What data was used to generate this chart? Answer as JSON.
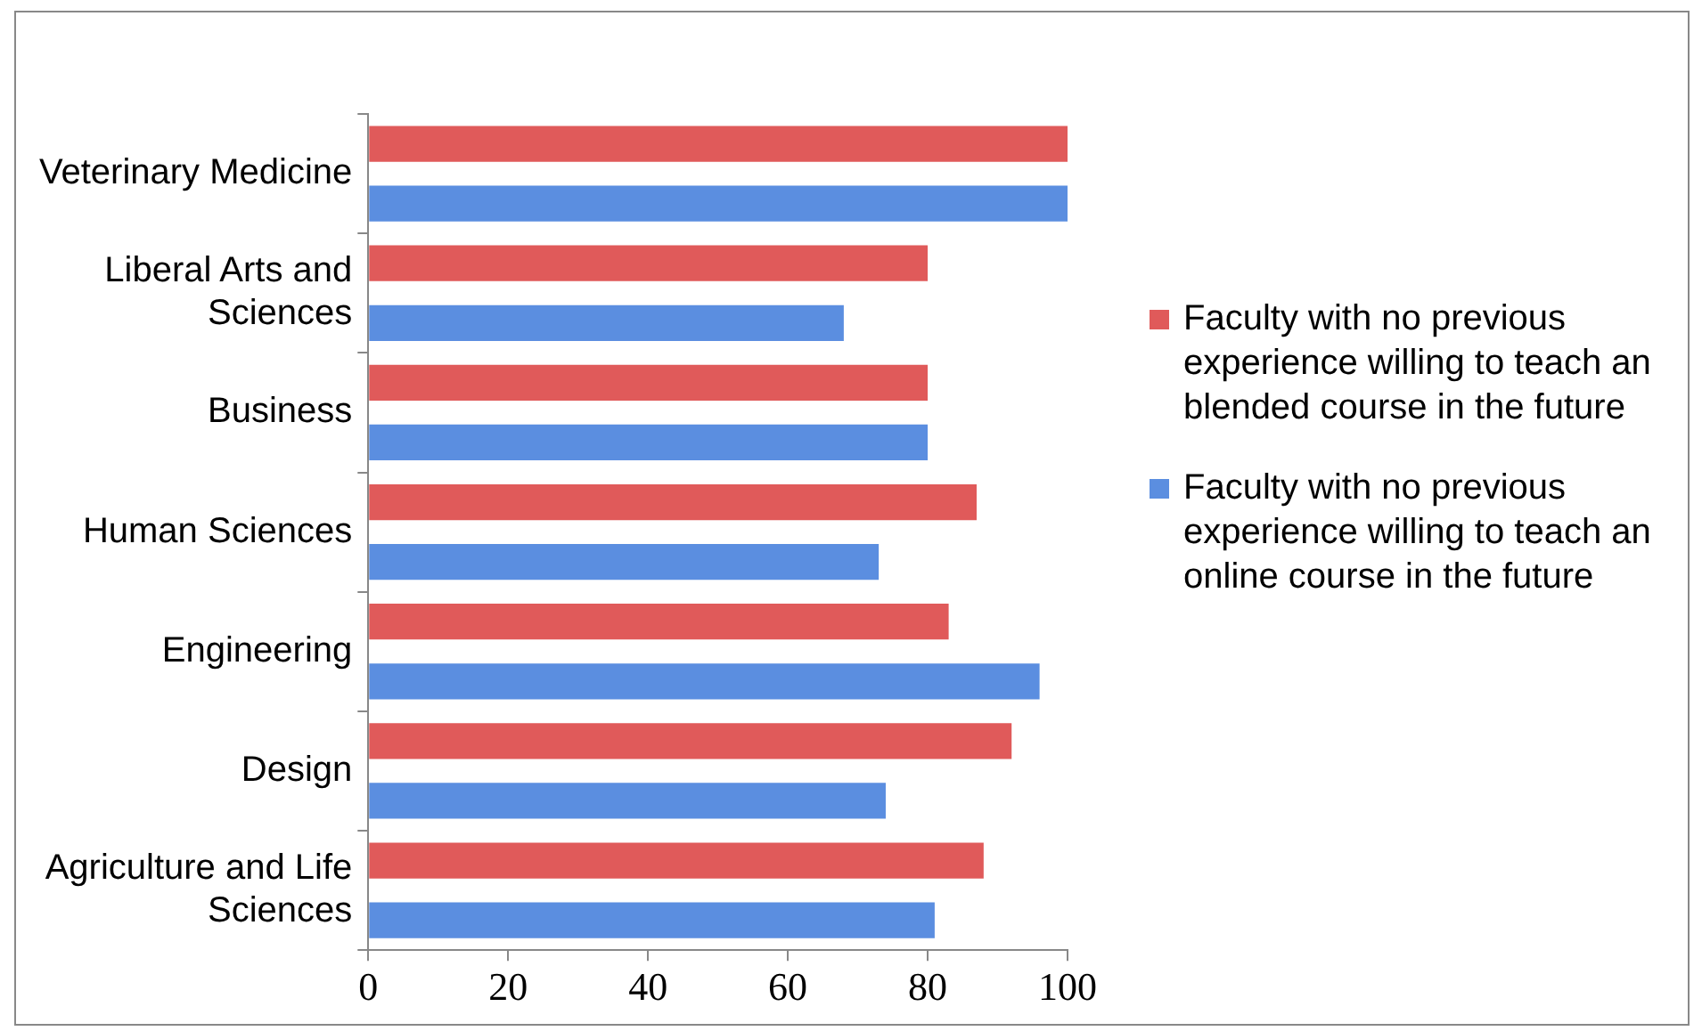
{
  "chart_data": {
    "type": "bar",
    "orientation": "horizontal",
    "categories": [
      "Veterinary Medicine",
      "Liberal Arts and Sciences",
      "Business",
      "Human Sciences",
      "Engineering",
      "Design",
      "Agriculture and Life Sciences"
    ],
    "series": [
      {
        "name": "Faculty with no previous experience willing to teach an blended course in the future",
        "color": "#e05a5a",
        "values": [
          100,
          80,
          80,
          87,
          83,
          92,
          88
        ]
      },
      {
        "name": "Faculty with no previous experience willing to teach an online course in the future",
        "color": "#5b8ee0",
        "values": [
          100,
          68,
          80,
          73,
          96,
          74,
          81
        ]
      }
    ],
    "xlim": [
      0,
      100
    ],
    "xticks": [
      0,
      20,
      40,
      60,
      80,
      100
    ],
    "grid": false,
    "legend": "right"
  }
}
